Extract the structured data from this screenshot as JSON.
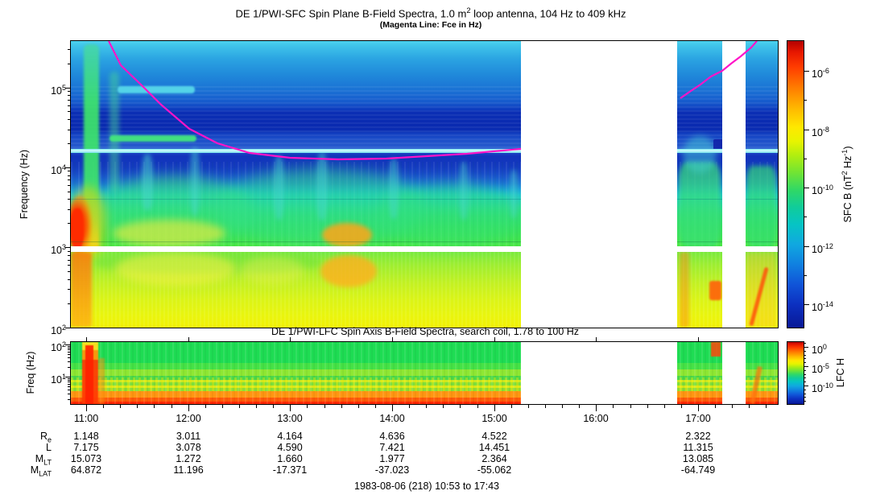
{
  "figure": {
    "title": "DE 1/PWI-SFC  Spin Plane B-Field Spectra, 1.0 m^2 loop antenna, 104 Hz to 409 kHz",
    "subtitle": "(Magenta Line: Fce in Hz)",
    "footer": "1983-08-06 (218) 10:53 to 17:43"
  },
  "sfc_panel": {
    "ylabel": "Frequency (Hz)",
    "yticks": [
      "10^5",
      "10^4",
      "10^3",
      "10^2"
    ],
    "colorbar_label": "SFC B (nT^2 Hz^-1)",
    "colorbar_ticks": [
      "10^-6",
      "10^-8",
      "10^-10",
      "10^-12",
      "10^-14"
    ]
  },
  "lfc_panel": {
    "title": "DE 1/PWI-LFC  Spin Axis B-Field Spectra, search coil, 1.78 to 100 Hz",
    "ylabel": "Freq (Hz)",
    "yticks": [
      "10^2",
      "10^1"
    ],
    "colorbar_label": "LFC H",
    "colorbar_ticks": [
      "10^0",
      "10^-5",
      "10^-10"
    ]
  },
  "time_axis": {
    "labels": [
      "11:00",
      "12:00",
      "13:00",
      "14:00",
      "15:00",
      "16:00",
      "17:00"
    ],
    "start": "10:53",
    "end": "17:43"
  },
  "ephemeris": {
    "row_labels": [
      "R_e",
      "L",
      "M_LT",
      "M_LAT"
    ],
    "columns": [
      {
        "time": "11:00",
        "values": [
          "1.148",
          "7.175",
          "15.073",
          "64.872"
        ]
      },
      {
        "time": "12:00",
        "values": [
          "3.011",
          "3.078",
          "1.272",
          "11.196"
        ]
      },
      {
        "time": "13:00",
        "values": [
          "4.164",
          "4.590",
          "1.660",
          "-17.371"
        ]
      },
      {
        "time": "14:00",
        "values": [
          "4.636",
          "7.421",
          "1.977",
          "-37.023"
        ]
      },
      {
        "time": "15:00",
        "values": [
          "4.522",
          "14.451",
          "2.364",
          "-55.062"
        ]
      },
      {
        "time": "17:00",
        "values": [
          "2.322",
          "11.315",
          "13.085",
          "-64.749"
        ]
      }
    ]
  },
  "chart_data": [
    {
      "type": "heatmap",
      "name": "SFC spectrogram",
      "title": "DE 1/PWI-SFC Spin Plane B-Field Spectra, 1.0 m^2 loop antenna, 104 Hz to 409 kHz",
      "xlabel": "Time (UT), 1983-08-06 (day 218), 10:53 to 17:43",
      "ylabel": "Frequency (Hz)",
      "yscale": "log",
      "ylim_hz": [
        100,
        409000
      ],
      "ytick_values_hz": [
        100000,
        10000,
        1000,
        100
      ],
      "x_ticks": [
        "11:00",
        "12:00",
        "13:00",
        "14:00",
        "15:00",
        "16:00",
        "17:00"
      ],
      "color_scale": {
        "label": "SFC B (nT^2 Hz^-1)",
        "min": 1e-15,
        "max": 1e-05,
        "tick_values": [
          1e-06,
          1e-08,
          1e-10,
          1e-12,
          1e-14
        ],
        "palette": "rainbow/jet, red = high intensity, dark blue = low"
      },
      "overlay_line": {
        "name": "Fce (electron cyclotron frequency)",
        "color": "#ff14c8",
        "points_time_hz": [
          [
            "11:13",
            380000
          ],
          [
            "11:34",
            100000
          ],
          [
            "12:01",
            30000
          ],
          [
            "12:36",
            15000
          ],
          [
            "13:35",
            12600
          ],
          [
            "14:35",
            14500
          ],
          [
            "15:16",
            17000
          ],
          [
            "16:50",
            73000
          ],
          [
            "17:14",
            161000
          ],
          [
            "17:35",
            380000
          ]
        ]
      },
      "data_gaps": [
        "15:16 to 16:48",
        "17:14 to 17:28"
      ],
      "features": [
        "intense broadband burst ~10:58-11:10 reaching red levels below ~2 kHz (auroral crossing)",
        "cyan-green auroral hiss funnels ~11:10-15:16 between ~2 and 30 kHz",
        "yellow-orange enhancement ~13:30-14:00 near 500-900 Hz",
        "narrow bright cyan horizontal line near 18 kHz across the whole pass",
        "white instrumental blank band near 1 kHz",
        "dark blue low-intensity band ~30-80 kHz",
        "yellow background below 1 kHz increasing toward 100 Hz"
      ]
    },
    {
      "type": "heatmap",
      "name": "LFC spectrogram",
      "title": "DE 1/PWI-LFC Spin Axis B-Field Spectra, search coil, 1.78 to 100 Hz",
      "ylabel": "Freq (Hz)",
      "yscale": "log",
      "ylim_hz": [
        1.78,
        100
      ],
      "ytick_values_hz": [
        100,
        10
      ],
      "x_ticks": [
        "11:00",
        "12:00",
        "13:00",
        "14:00",
        "15:00",
        "16:00",
        "17:00"
      ],
      "color_scale": {
        "label": "LFC H",
        "min": 1e-12,
        "max": 1,
        "tick_values": [
          1,
          1e-05,
          1e-10
        ],
        "palette": "rainbow/jet, red = high intensity"
      },
      "data_gaps": [
        "15:16 to 16:48",
        "17:14 to 17:28"
      ],
      "features": [
        "discrete horizontal channel bands; intensity rises toward low frequency (orange-red below ~4 Hz)",
        "green levels above ~20 Hz, yellow-green mottling 5-15 Hz",
        "intense red burst ~11:02-11:08 across all channels"
      ]
    }
  ]
}
